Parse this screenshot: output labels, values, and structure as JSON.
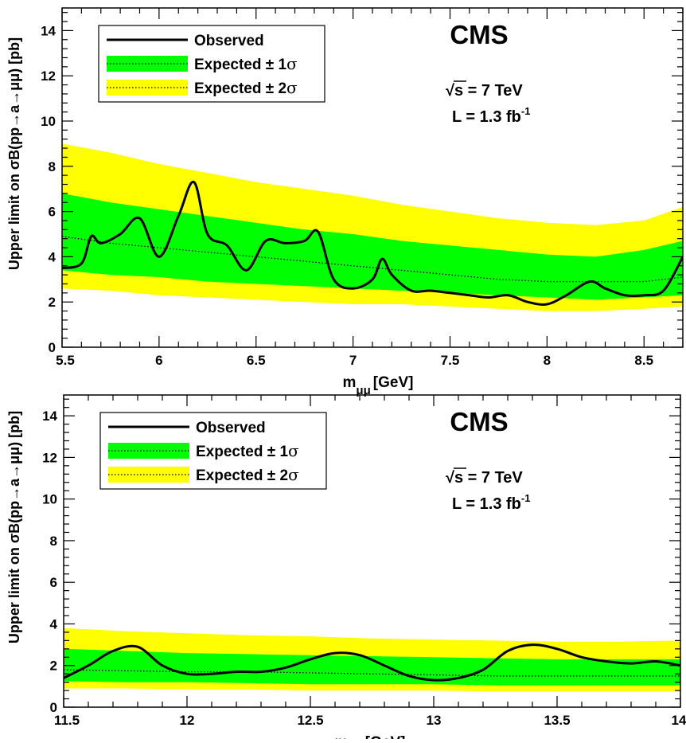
{
  "chart_data": [
    {
      "type": "line",
      "experiment": "CMS",
      "energy_label": "√s = 7 TeV",
      "lumi_label": "L = 1.3 fb",
      "lumi_exp": "-1",
      "xlabel": "m",
      "xlabel_sub": "μμ",
      "xlabel_unit": "[GeV]",
      "ylabel": "Upper limit on σB(pp→a→μμ) [pb]",
      "xlim": [
        5.5,
        8.7
      ],
      "ylim": [
        0,
        15
      ],
      "xticks": [
        5.5,
        6,
        6.5,
        7,
        7.5,
        8,
        8.5
      ],
      "xtick_labels": [
        "5.5",
        "6",
        "6.5",
        "7",
        "7.5",
        "8",
        "8.5"
      ],
      "yticks": [
        0,
        2,
        4,
        6,
        8,
        10,
        12,
        14
      ],
      "ytick_labels": [
        "0",
        "2",
        "4",
        "6",
        "8",
        "10",
        "12",
        "14"
      ],
      "legend": {
        "position": "top-left",
        "entries": [
          "Observed",
          "Expected ± 1σ",
          "Expected ± 2σ"
        ],
        "entry_main": [
          "Observed",
          "Expected ± 1",
          "Expected ± 2"
        ],
        "entry_sym": [
          "",
          "σ",
          "σ"
        ]
      },
      "colors": {
        "band1": "#00ff00",
        "band2": "#ffff00",
        "observed": "#000000",
        "expected": "#000000"
      },
      "x": [
        5.5,
        5.6,
        5.65,
        5.7,
        5.8,
        5.9,
        6.0,
        6.1,
        6.18,
        6.25,
        6.35,
        6.45,
        6.55,
        6.65,
        6.75,
        6.82,
        6.9,
        7.0,
        7.1,
        7.15,
        7.2,
        7.3,
        7.4,
        7.5,
        7.6,
        7.7,
        7.8,
        7.9,
        8.0,
        8.1,
        8.22,
        8.3,
        8.4,
        8.5,
        8.6,
        8.7
      ],
      "observed": [
        3.5,
        3.7,
        4.9,
        4.6,
        5.0,
        5.7,
        4.0,
        5.8,
        7.3,
        5.0,
        4.5,
        3.4,
        4.7,
        4.6,
        4.7,
        5.1,
        3.0,
        2.6,
        3.0,
        3.9,
        3.2,
        2.5,
        2.5,
        2.4,
        2.3,
        2.2,
        2.3,
        2.0,
        1.9,
        2.3,
        2.9,
        2.6,
        2.3,
        2.3,
        2.5,
        4.0
      ],
      "band_x": [
        5.5,
        5.75,
        6.0,
        6.25,
        6.5,
        6.75,
        7.0,
        7.25,
        7.5,
        7.75,
        8.0,
        8.25,
        8.5,
        8.7
      ],
      "expected": [
        4.9,
        4.6,
        4.4,
        4.2,
        4.0,
        3.8,
        3.6,
        3.4,
        3.2,
        3.0,
        2.9,
        2.9,
        2.9,
        3.1
      ],
      "band1_low": [
        3.4,
        3.2,
        3.1,
        2.9,
        2.8,
        2.7,
        2.6,
        2.5,
        2.4,
        2.3,
        2.2,
        2.1,
        2.2,
        2.3
      ],
      "band1_high": [
        6.8,
        6.4,
        6.1,
        5.8,
        5.5,
        5.2,
        5.0,
        4.7,
        4.5,
        4.3,
        4.1,
        4.0,
        4.3,
        4.7
      ],
      "band2_low": [
        2.6,
        2.5,
        2.3,
        2.2,
        2.1,
        2.0,
        1.9,
        1.9,
        1.8,
        1.7,
        1.6,
        1.6,
        1.7,
        1.8
      ],
      "band2_high": [
        9.0,
        8.6,
        8.1,
        7.7,
        7.3,
        7.0,
        6.7,
        6.3,
        6.0,
        5.7,
        5.5,
        5.4,
        5.6,
        6.2
      ]
    },
    {
      "type": "line",
      "experiment": "CMS",
      "energy_label": "√s = 7 TeV",
      "lumi_label": "L = 1.3 fb",
      "lumi_exp": "-1",
      "xlabel": "m",
      "xlabel_sub": "μμ",
      "xlabel_unit": "[GeV]",
      "ylabel": "Upper limit on σB(pp→a→μμ) [pb]",
      "xlim": [
        11.5,
        14
      ],
      "ylim": [
        0,
        15
      ],
      "xticks": [
        11.5,
        12,
        12.5,
        13,
        13.5,
        14
      ],
      "xtick_labels": [
        "11.5",
        "12",
        "12.5",
        "13",
        "13.5",
        "14"
      ],
      "yticks": [
        0,
        2,
        4,
        6,
        8,
        10,
        12,
        14
      ],
      "ytick_labels": [
        "0",
        "2",
        "4",
        "6",
        "8",
        "10",
        "12",
        "14"
      ],
      "legend": {
        "position": "top-left",
        "entries": [
          "Observed",
          "Expected ± 1σ",
          "Expected ± 2σ"
        ],
        "entry_main": [
          "Observed",
          "Expected ± 1",
          "Expected ± 2"
        ],
        "entry_sym": [
          "",
          "σ",
          "σ"
        ]
      },
      "colors": {
        "band1": "#00ff00",
        "band2": "#ffff00",
        "observed": "#000000",
        "expected": "#000000"
      },
      "x": [
        11.5,
        11.6,
        11.7,
        11.8,
        11.9,
        12.0,
        12.1,
        12.2,
        12.3,
        12.4,
        12.5,
        12.6,
        12.7,
        12.8,
        12.9,
        13.0,
        13.1,
        13.2,
        13.3,
        13.4,
        13.5,
        13.6,
        13.7,
        13.8,
        13.9,
        14.0
      ],
      "observed": [
        1.4,
        2.0,
        2.7,
        2.9,
        2.0,
        1.6,
        1.6,
        1.7,
        1.7,
        1.9,
        2.3,
        2.6,
        2.5,
        2.0,
        1.5,
        1.3,
        1.4,
        1.8,
        2.7,
        3.0,
        2.8,
        2.4,
        2.2,
        2.1,
        2.2,
        2.0
      ],
      "band_x": [
        11.5,
        11.75,
        12.0,
        12.25,
        12.5,
        12.75,
        13.0,
        13.25,
        13.5,
        13.75,
        14.0
      ],
      "expected": [
        1.8,
        1.75,
        1.7,
        1.7,
        1.65,
        1.6,
        1.55,
        1.5,
        1.5,
        1.5,
        1.5
      ],
      "band1_low": [
        1.25,
        1.2,
        1.2,
        1.15,
        1.1,
        1.1,
        1.1,
        1.05,
        1.05,
        1.05,
        1.05
      ],
      "band1_high": [
        2.8,
        2.7,
        2.6,
        2.55,
        2.5,
        2.45,
        2.4,
        2.35,
        2.3,
        2.3,
        2.3
      ],
      "band2_low": [
        0.9,
        0.9,
        0.85,
        0.85,
        0.8,
        0.8,
        0.8,
        0.75,
        0.75,
        0.75,
        0.75
      ],
      "band2_high": [
        3.8,
        3.65,
        3.55,
        3.45,
        3.4,
        3.3,
        3.25,
        3.2,
        3.15,
        3.15,
        3.2
      ]
    }
  ]
}
